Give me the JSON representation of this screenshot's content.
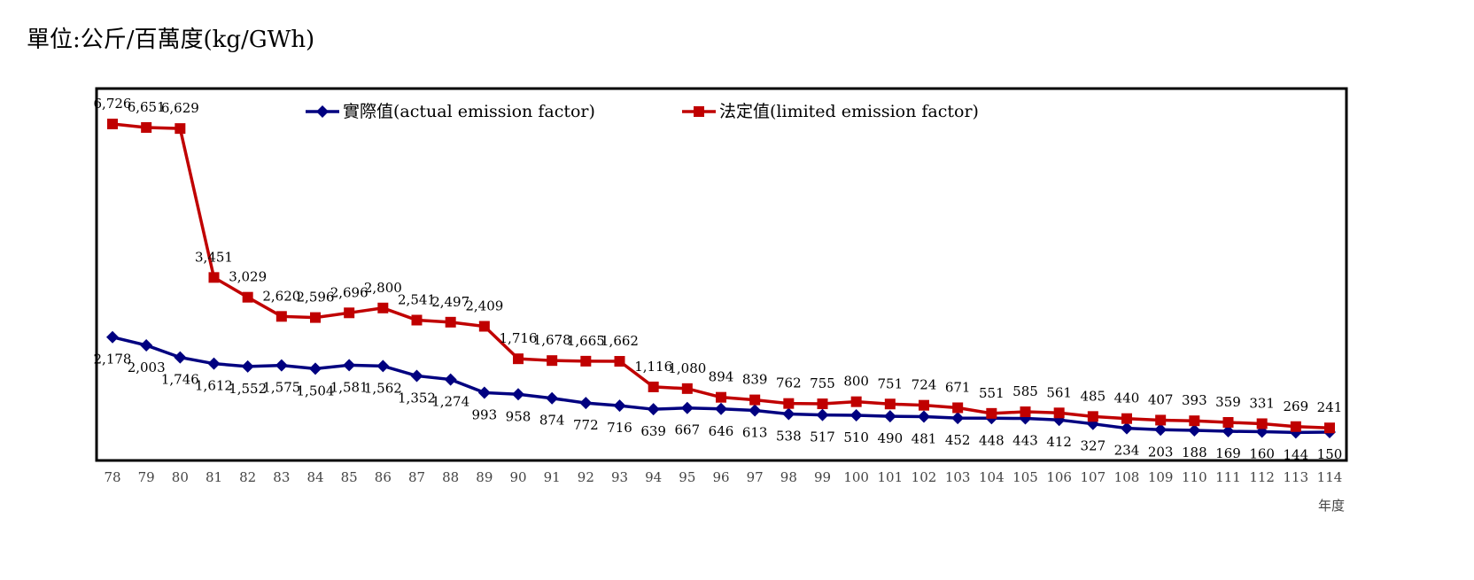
{
  "chart_data": {
    "type": "line",
    "title": "單位:公斤/百萬度(kg/GWh)",
    "x_label": "年度",
    "categories": [
      "78",
      "79",
      "80",
      "81",
      "82",
      "83",
      "84",
      "85",
      "86",
      "87",
      "88",
      "89",
      "90",
      "91",
      "92",
      "93",
      "94",
      "95",
      "96",
      "97",
      "98",
      "99",
      "100",
      "101",
      "102",
      "103",
      "104",
      "105",
      "106",
      "107",
      "108",
      "109",
      "110",
      "111",
      "112",
      "113",
      "114"
    ],
    "series": [
      {
        "name": "實際值(actual emission factor)",
        "color": "#000080",
        "marker": "diamond",
        "values": [
          2178,
          2003,
          1746,
          1612,
          1552,
          1575,
          1504,
          1581,
          1562,
          1352,
          1274,
          993,
          958,
          874,
          772,
          716,
          639,
          667,
          646,
          613,
          538,
          517,
          510,
          490,
          481,
          452,
          448,
          443,
          412,
          327,
          234,
          203,
          188,
          169,
          160,
          144,
          150
        ],
        "value_labels": [
          "2,178",
          "2,003",
          "1,746",
          "1,612",
          "1,552",
          "1,575",
          "1,504",
          "1,581",
          "1,562",
          "1,352",
          "1,274",
          "993",
          "958",
          "874",
          "772",
          "716",
          "639",
          "667",
          "646",
          "613",
          "538",
          "517",
          "510",
          "490",
          "481",
          "452",
          "448",
          "443",
          "412",
          "327",
          "234",
          "203",
          "188",
          "169",
          "160",
          "144",
          "150"
        ]
      },
      {
        "name": "法定值(limited emission factor)",
        "color": "#c00000",
        "marker": "square",
        "values": [
          6726,
          6651,
          6629,
          3451,
          3029,
          2620,
          2596,
          2696,
          2800,
          2541,
          2497,
          2409,
          1716,
          1678,
          1665,
          1662,
          1116,
          1080,
          894,
          839,
          762,
          755,
          800,
          751,
          724,
          671,
          551,
          585,
          561,
          485,
          440,
          407,
          393,
          359,
          331,
          269,
          241
        ],
        "value_labels": [
          "6,726",
          "6,651",
          "6,629",
          "3,451",
          "3,029",
          "2,620",
          "2,596",
          "2,696",
          "2,800",
          "2,541",
          "2,497",
          "2,409",
          "1,716",
          "1,678",
          "1,665",
          "1,662",
          "1,116",
          "1,080",
          "894",
          "839",
          "762",
          "755",
          "800",
          "751",
          "724",
          "671",
          "551",
          "585",
          "561",
          "485",
          "440",
          "407",
          "393",
          "359",
          "331",
          "269",
          "241"
        ]
      }
    ]
  }
}
